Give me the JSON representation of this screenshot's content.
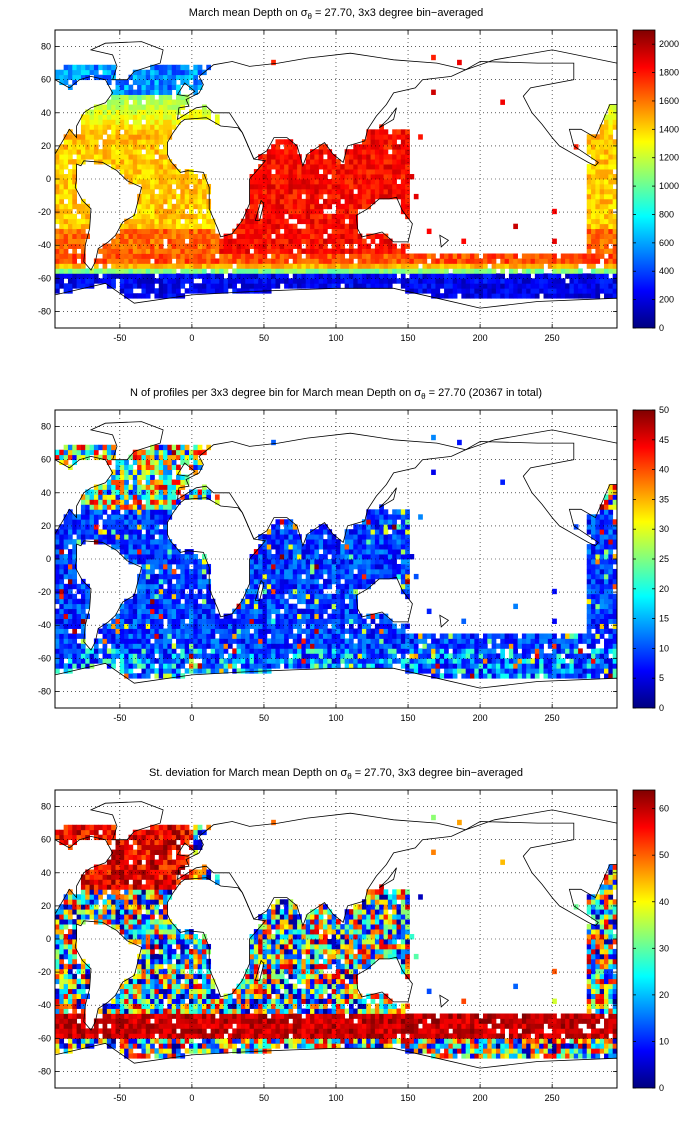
{
  "chart_data": [
    {
      "type": "heatmap",
      "title_pre": "March mean Depth on ",
      "title_sigma": "σ",
      "title_sub": "θ",
      "title_post": " = 27.70, 3x3 degree bin−averaged",
      "x_ticks": [
        "-50",
        "0",
        "50",
        "100",
        "150",
        "200",
        "250"
      ],
      "x_tick_values": [
        -50,
        0,
        50,
        100,
        150,
        200,
        250
      ],
      "y_ticks": [
        "80",
        "60",
        "40",
        "20",
        "0",
        "-20",
        "-40",
        "-60",
        "-80"
      ],
      "y_tick_values": [
        80,
        60,
        40,
        20,
        0,
        -20,
        -40,
        -60,
        -80
      ],
      "xlim": [
        -95,
        295
      ],
      "ylim": [
        -90,
        90
      ],
      "colorbar_ticks": [
        "2000",
        "1800",
        "1600",
        "1400",
        "1200",
        "1000",
        "800",
        "600",
        "400",
        "200",
        "0"
      ],
      "colorbar_values": [
        2000,
        1800,
        1600,
        1400,
        1200,
        1000,
        800,
        600,
        400,
        200,
        0
      ],
      "clim": [
        0,
        2100
      ],
      "colormap": "jet",
      "field": "depth",
      "grid": true
    },
    {
      "type": "heatmap",
      "title_pre": "N of profiles per 3x3 degree bin for March mean Depth on ",
      "title_sigma": "σ",
      "title_sub": "θ",
      "title_post": " = 27.70 (20367 in total)",
      "x_ticks": [
        "-50",
        "0",
        "50",
        "100",
        "150",
        "200",
        "250"
      ],
      "x_tick_values": [
        -50,
        0,
        50,
        100,
        150,
        200,
        250
      ],
      "y_ticks": [
        "80",
        "60",
        "40",
        "20",
        "0",
        "-20",
        "-40",
        "-60",
        "-80"
      ],
      "y_tick_values": [
        80,
        60,
        40,
        20,
        0,
        -20,
        -40,
        -60,
        -80
      ],
      "xlim": [
        -95,
        295
      ],
      "ylim": [
        -90,
        90
      ],
      "colorbar_ticks": [
        "50",
        "45",
        "40",
        "35",
        "30",
        "25",
        "20",
        "15",
        "10",
        "5",
        "0"
      ],
      "colorbar_values": [
        50,
        45,
        40,
        35,
        30,
        25,
        20,
        15,
        10,
        5,
        0
      ],
      "clim": [
        0,
        50
      ],
      "colormap": "jet",
      "field": "count",
      "grid": true
    },
    {
      "type": "heatmap",
      "title_pre": "St. deviation for March mean Depth on ",
      "title_sigma": "σ",
      "title_sub": "θ",
      "title_post": " = 27.70, 3x3 degree bin−averaged",
      "x_ticks": [
        "-50",
        "0",
        "50",
        "100",
        "150",
        "200",
        "250"
      ],
      "x_tick_values": [
        -50,
        0,
        50,
        100,
        150,
        200,
        250
      ],
      "y_ticks": [
        "80",
        "60",
        "40",
        "20",
        "0",
        "-20",
        "-40",
        "-60",
        "-80"
      ],
      "y_tick_values": [
        80,
        60,
        40,
        20,
        0,
        -20,
        -40,
        -60,
        -80
      ],
      "xlim": [
        -95,
        295
      ],
      "ylim": [
        -90,
        90
      ],
      "colorbar_ticks": [
        "60",
        "50",
        "40",
        "30",
        "20",
        "10",
        "0"
      ],
      "colorbar_values": [
        60,
        50,
        40,
        30,
        20,
        10,
        0
      ],
      "clim": [
        0,
        64
      ],
      "colormap": "jet",
      "field": "std",
      "grid": true
    }
  ]
}
